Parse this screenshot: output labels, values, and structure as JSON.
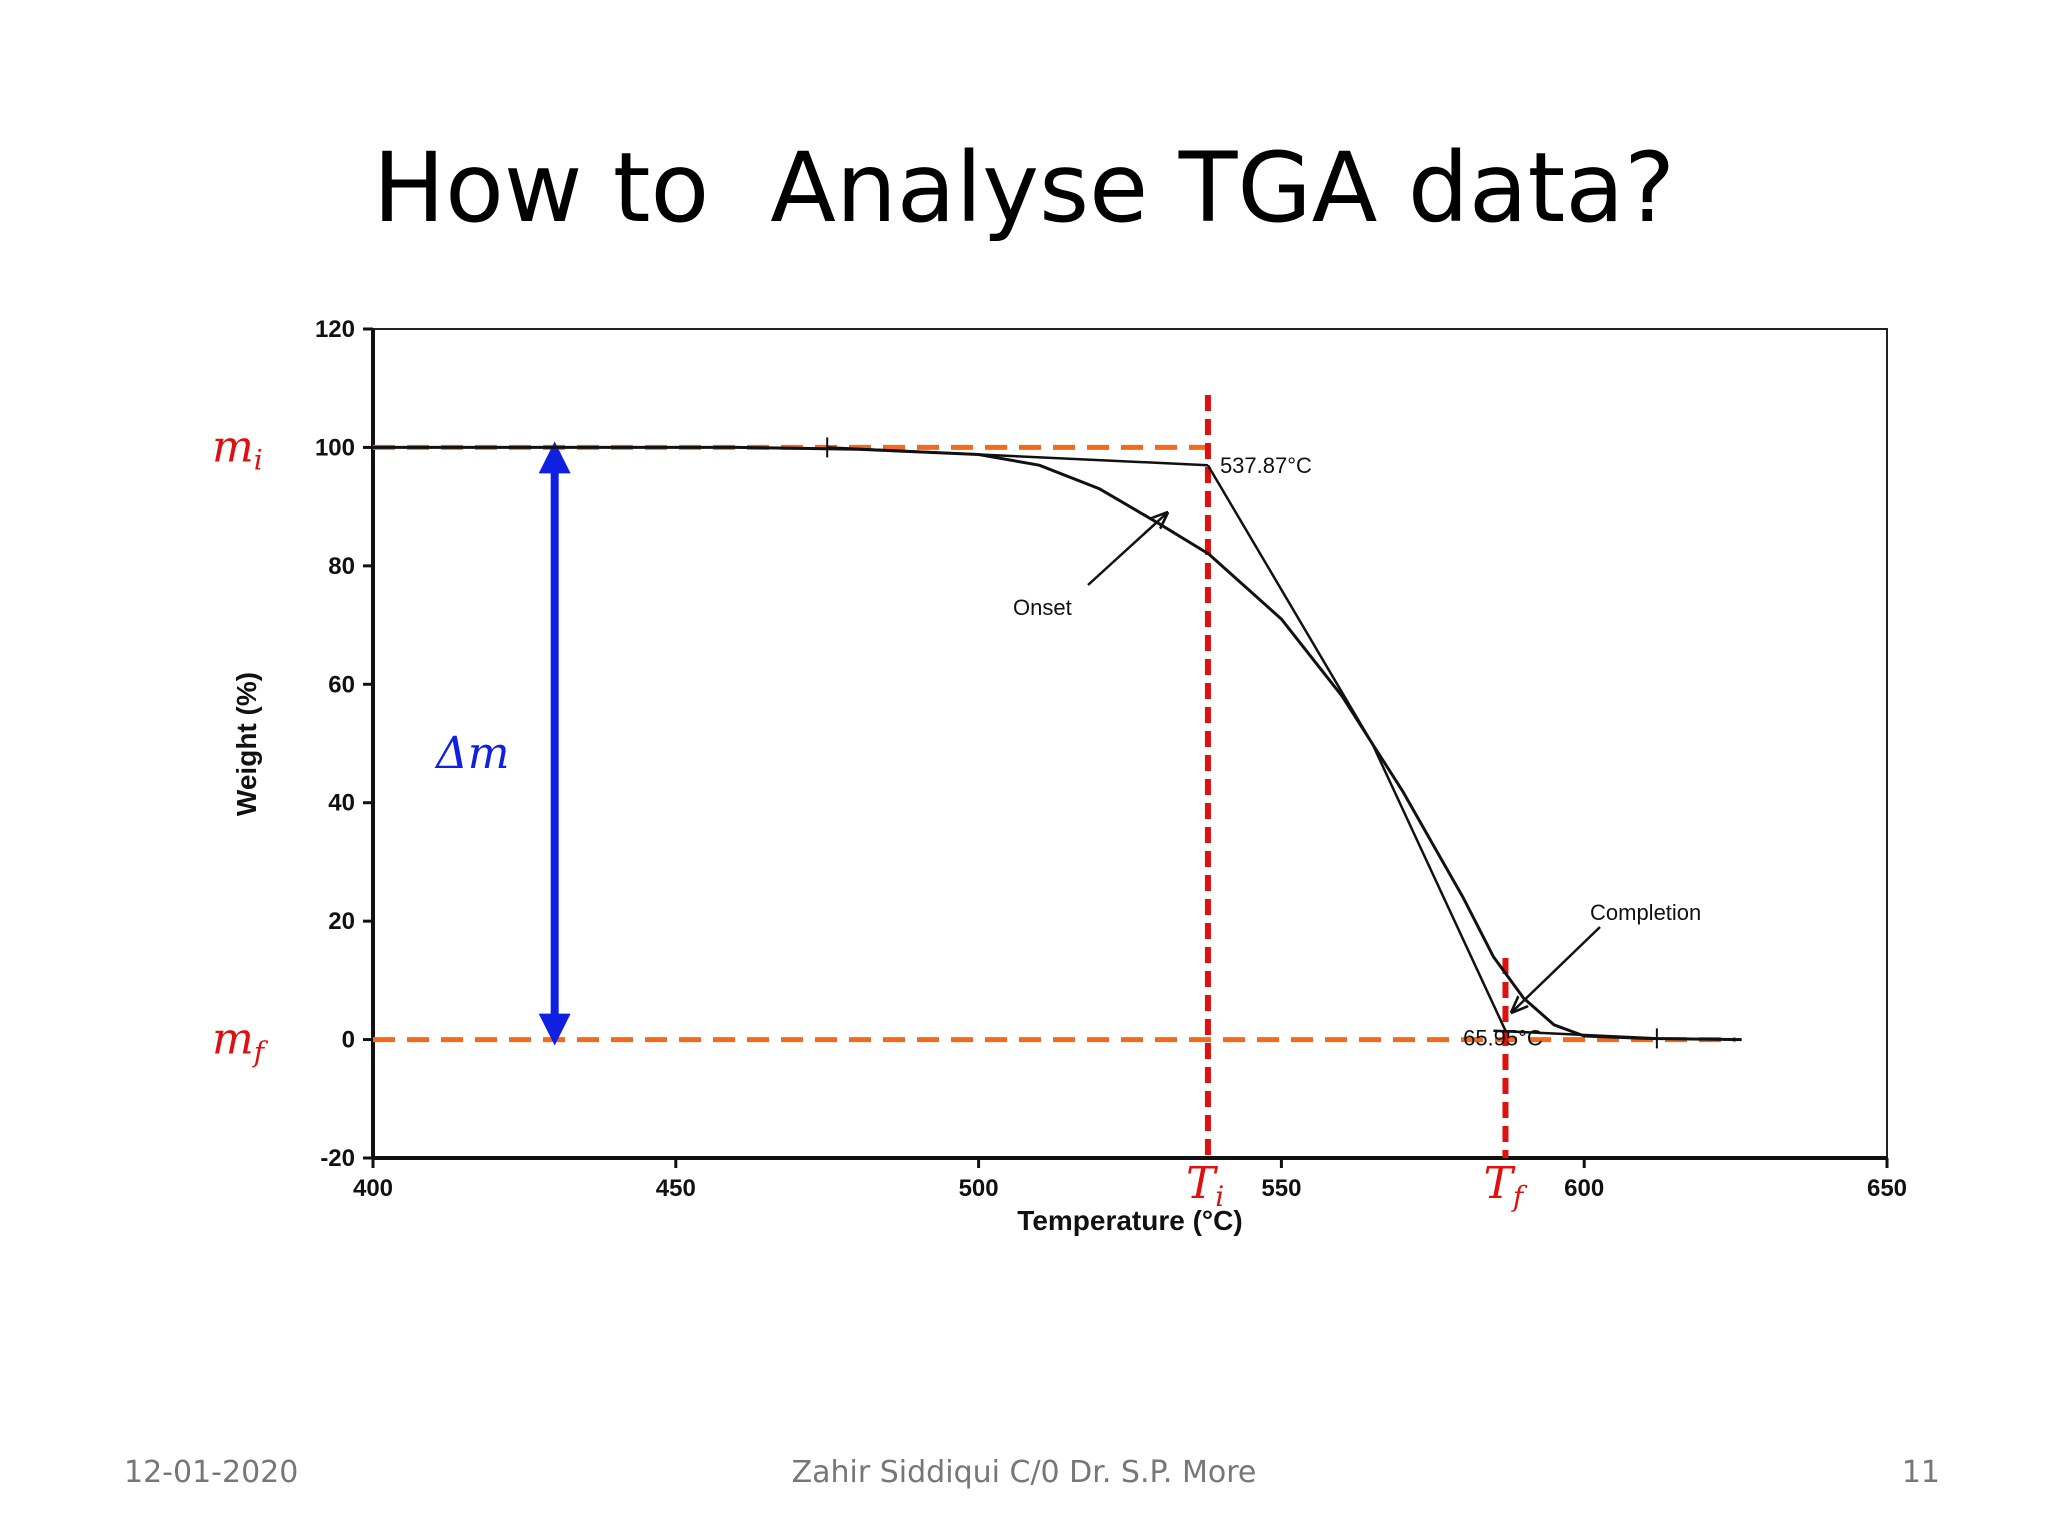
{
  "slide": {
    "title": "How to  Analyse TGA data?",
    "footer_date": "12-01-2020",
    "footer_author": "Zahir Siddiqui C/0 Dr. S.P. More",
    "page_number": "11"
  },
  "chart_data": {
    "type": "line",
    "xlabel": "Temperature (°C)",
    "ylabel": "Weight (%)",
    "xlim": [
      400,
      650
    ],
    "ylim": [
      -20,
      120
    ],
    "xticks": [
      400,
      450,
      500,
      550,
      600,
      650
    ],
    "yticks": [
      -20,
      0,
      20,
      40,
      60,
      80,
      100,
      120
    ],
    "grid": false,
    "series": [
      {
        "values": [
          [
            400,
            100
          ],
          [
            460,
            100
          ],
          [
            480,
            99.7
          ],
          [
            500,
            98.8
          ],
          [
            510,
            97
          ],
          [
            520,
            93
          ],
          [
            530,
            87
          ],
          [
            538,
            82
          ],
          [
            550,
            71
          ],
          [
            560,
            58
          ],
          [
            565,
            50
          ],
          [
            570,
            42
          ],
          [
            575,
            33
          ],
          [
            580,
            24
          ],
          [
            585,
            14
          ],
          [
            590,
            7
          ],
          [
            595,
            2.5
          ],
          [
            600,
            0.6
          ],
          [
            610,
            0.2
          ],
          [
            626,
            0
          ]
        ]
      }
    ],
    "construction_lines": [
      {
        "values": [
          [
            475,
            100
          ],
          [
            537.87,
            97
          ]
        ]
      },
      {
        "values": [
          [
            537.87,
            97
          ],
          [
            565,
            50
          ],
          [
            587,
            1.5
          ]
        ]
      },
      {
        "values": [
          [
            585,
            1.5
          ],
          [
            612,
            0.2
          ]
        ]
      }
    ],
    "annotations": {
      "onset_temp": "537.87°C",
      "completion_temp": "65.95°C",
      "onset_label": "Onset",
      "completion_label": "Completion"
    },
    "markers": {
      "mi_label": "mi",
      "mf_label": "mf",
      "ti_label": "Ti",
      "tf_label": "Tf",
      "dm_label": "Δm",
      "mi_value": 100,
      "mf_value": 0,
      "ti_value": 537.87,
      "tf_value": 587,
      "dm_x": 430,
      "dash_color": "#f26b1d",
      "ref_color": "#e01010",
      "arrow_color": "#1020e0"
    }
  }
}
